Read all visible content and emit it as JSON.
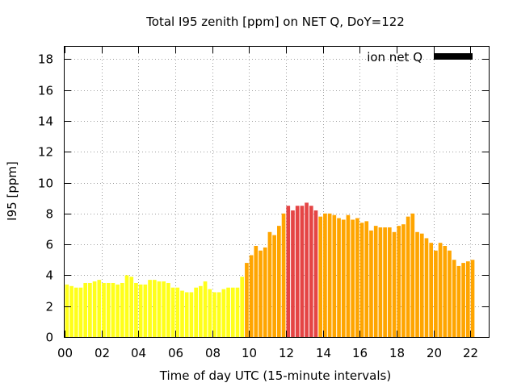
{
  "chart_data": {
    "type": "bar",
    "title": "Total I95 zenith [ppm] on NET Q, DoY=122",
    "xlabel": "Time of day UTC (15-minute intervals)",
    "ylabel": "I95 [ppm]",
    "xlim": [
      0,
      23
    ],
    "ylim": [
      0,
      18.8
    ],
    "x_ticks": [
      "00",
      "02",
      "04",
      "06",
      "08",
      "10",
      "12",
      "14",
      "16",
      "18",
      "20",
      "22"
    ],
    "y_ticks": [
      "0",
      "2",
      "4",
      "6",
      "8",
      "10",
      "12",
      "14",
      "16",
      "18"
    ],
    "grid": true,
    "legend_position": "top-right",
    "legend": {
      "label": "ion net Q",
      "color": "#000000"
    },
    "colors": {
      "low": "#ffff1a",
      "moderate": "#ffa500",
      "high": "#e54545"
    },
    "series": [
      {
        "values": [
          3.4,
          3.3,
          3.2,
          3.2,
          3.5,
          3.5,
          3.6,
          3.7,
          3.5,
          3.5,
          3.5,
          3.4,
          3.5,
          4.0,
          3.9,
          3.5,
          3.4,
          3.4,
          3.7,
          3.7,
          3.6,
          3.6,
          3.5,
          3.2,
          3.2,
          3.0,
          2.9,
          2.9,
          3.2,
          3.3,
          3.6,
          3.1,
          2.9,
          2.9,
          3.1,
          3.2,
          3.2,
          3.2,
          3.9,
          4.8,
          5.3,
          5.9,
          5.6,
          5.8,
          6.8,
          6.6,
          7.2,
          8.0,
          8.5,
          8.2,
          8.5,
          8.5,
          8.7,
          8.5,
          8.2,
          7.8,
          8.0,
          8.0,
          7.9,
          7.7,
          7.6,
          7.9,
          7.6,
          7.7,
          7.4,
          7.5,
          6.9,
          7.2,
          7.1,
          7.1,
          7.1,
          6.8,
          7.2,
          7.3,
          7.8,
          8.0,
          6.8,
          6.7,
          6.4,
          6.1,
          5.6,
          6.1,
          5.9,
          5.6,
          5.0,
          4.6,
          4.8,
          4.9,
          5.0
        ],
        "levels": [
          "low",
          "low",
          "low",
          "low",
          "low",
          "low",
          "low",
          "low",
          "low",
          "low",
          "low",
          "low",
          "low",
          "low",
          "low",
          "low",
          "low",
          "low",
          "low",
          "low",
          "low",
          "low",
          "low",
          "low",
          "low",
          "low",
          "low",
          "low",
          "low",
          "low",
          "low",
          "low",
          "low",
          "low",
          "low",
          "low",
          "low",
          "low",
          "low",
          "moderate",
          "moderate",
          "moderate",
          "moderate",
          "moderate",
          "moderate",
          "moderate",
          "moderate",
          "moderate",
          "high",
          "high",
          "high",
          "high",
          "high",
          "high",
          "high",
          "moderate",
          "moderate",
          "moderate",
          "moderate",
          "moderate",
          "moderate",
          "moderate",
          "moderate",
          "moderate",
          "moderate",
          "moderate",
          "moderate",
          "moderate",
          "moderate",
          "moderate",
          "moderate",
          "moderate",
          "moderate",
          "moderate",
          "moderate",
          "moderate",
          "moderate",
          "moderate",
          "moderate",
          "moderate",
          "moderate",
          "moderate",
          "moderate",
          "moderate",
          "moderate",
          "moderate",
          "moderate",
          "moderate",
          "moderate"
        ]
      }
    ],
    "interval_hours": 0.25
  }
}
